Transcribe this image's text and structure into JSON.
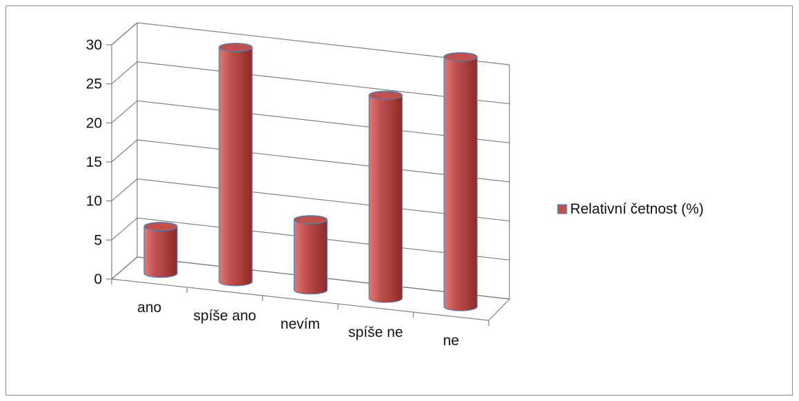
{
  "chart_data": {
    "type": "bar",
    "style": "3d-cylinder",
    "categories": [
      "ano",
      "spíše ano",
      "nevím",
      "spíše ne",
      "ne"
    ],
    "series": [
      {
        "name": "Relativní četnost (%)",
        "values": [
          6,
          30,
          9,
          26,
          32
        ]
      }
    ],
    "ylim": [
      0,
      30
    ],
    "yticks": [
      "0",
      "5",
      "10",
      "15",
      "20",
      "25",
      "30"
    ],
    "grid": true,
    "legend": "right",
    "colors": {
      "bar": "#c0504d",
      "bar_dark": "#8e2a26",
      "bar_light": "#dd7a76",
      "bar_edge": "#4f81bd",
      "grid": "#808080"
    }
  }
}
